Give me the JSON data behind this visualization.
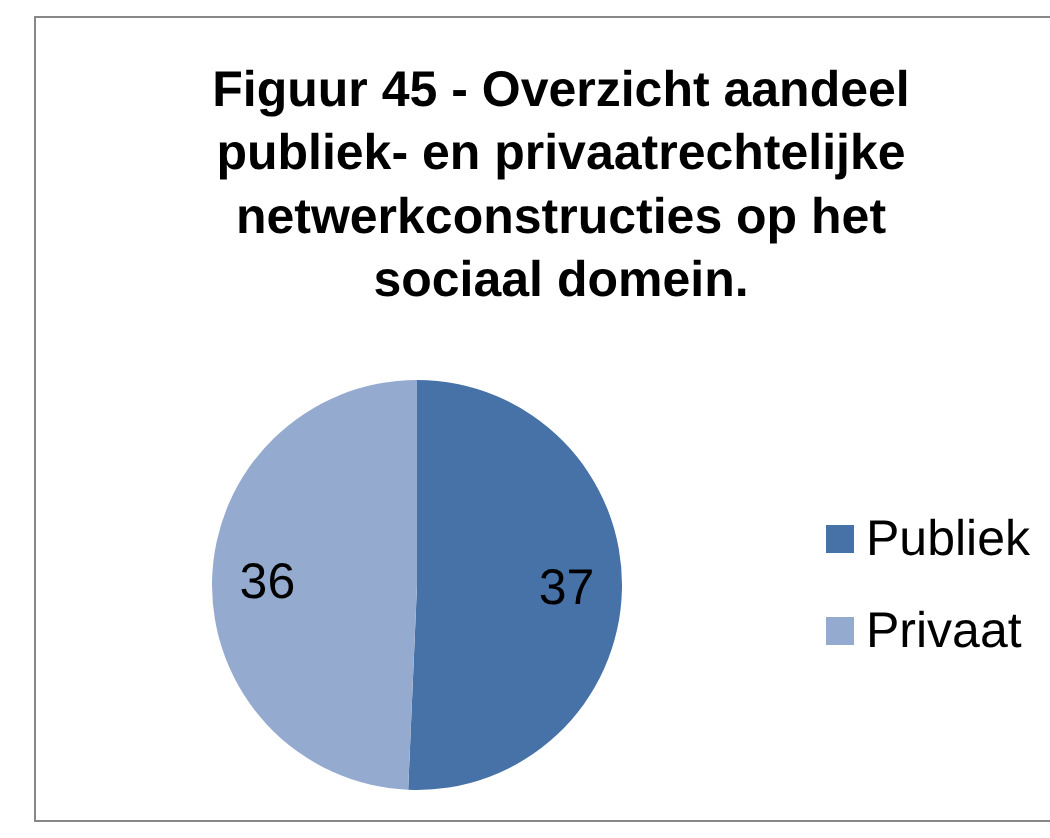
{
  "chart_data": {
    "type": "pie",
    "title": "Figuur 45 - Overzicht aandeel publiek- en privaatrechtelijke netwerkconstructies op het sociaal domein.",
    "categories": [
      "Publiek",
      "Privaat"
    ],
    "values": [
      37,
      36
    ],
    "colors": [
      "#4672a8",
      "#95aacf"
    ],
    "data_labels": true,
    "legend": "right"
  }
}
